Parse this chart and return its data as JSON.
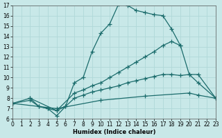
{
  "xlabel": "Humidex (Indice chaleur)",
  "xlim": [
    0,
    23
  ],
  "ylim": [
    6,
    17
  ],
  "yticks": [
    6,
    7,
    8,
    9,
    10,
    11,
    12,
    13,
    14,
    15,
    16,
    17
  ],
  "xticks": [
    0,
    1,
    2,
    3,
    4,
    5,
    6,
    7,
    8,
    9,
    10,
    11,
    12,
    13,
    14,
    15,
    16,
    17,
    18,
    19,
    20,
    21,
    22,
    23
  ],
  "bg_color": "#c8e8e8",
  "line_color": "#1a6b6b",
  "grid_color": "#b0d8d8",
  "line1_x": [
    2,
    3,
    4,
    5,
    6,
    7,
    8,
    9,
    10,
    11,
    12,
    13,
    14,
    15,
    16,
    17,
    18,
    19
  ],
  "line1_y": [
    8.0,
    7.2,
    7.0,
    6.3,
    7.2,
    9.5,
    10.0,
    12.5,
    14.3,
    15.2,
    17.1,
    17.0,
    16.5,
    16.3,
    16.1,
    16.0,
    14.7,
    13.1
  ],
  "line2_x": [
    0,
    2,
    5,
    7,
    8,
    9,
    10,
    11,
    12,
    13,
    14,
    15,
    16,
    17,
    18,
    19,
    20,
    21,
    23
  ],
  "line2_y": [
    7.5,
    8.0,
    6.8,
    8.5,
    8.8,
    9.2,
    9.5,
    10.0,
    10.5,
    11.0,
    11.5,
    12.0,
    12.5,
    13.1,
    13.5,
    13.1,
    10.3,
    10.3,
    8.0
  ],
  "line3_x": [
    0,
    2,
    3,
    4,
    5,
    6,
    7,
    8,
    9,
    10,
    11,
    12,
    13,
    14,
    15,
    16,
    17,
    18,
    19,
    20,
    21,
    23
  ],
  "line3_y": [
    7.5,
    7.8,
    7.2,
    7.0,
    6.8,
    7.2,
    8.0,
    8.3,
    8.6,
    8.8,
    9.0,
    9.2,
    9.5,
    9.7,
    9.9,
    10.1,
    10.3,
    10.3,
    10.2,
    10.3,
    9.5,
    8.0
  ],
  "line4_x": [
    0,
    5,
    10,
    15,
    20,
    21,
    23
  ],
  "line4_y": [
    7.5,
    7.0,
    7.8,
    8.2,
    8.5,
    8.3,
    8.0
  ]
}
